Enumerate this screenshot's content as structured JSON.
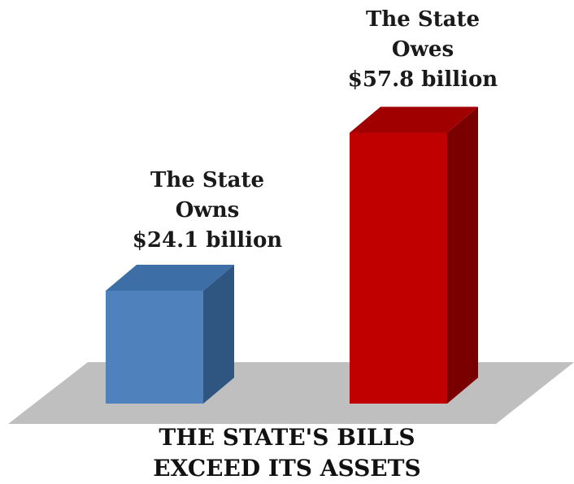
{
  "chart_data": {
    "type": "bar",
    "categories": [
      "The State Owns",
      "The State Owes"
    ],
    "values": [
      24.1,
      57.8
    ],
    "unit": "billion",
    "title_lines": [
      "THE STATE'S BILLS",
      "EXCEED ITS ASSETS"
    ],
    "labels": [
      {
        "lines": [
          "The State",
          "Owns",
          "$24.1 billion"
        ]
      },
      {
        "lines": [
          "The State",
          "Owes",
          "$57.8 billion"
        ]
      }
    ],
    "colors": {
      "owns_front": "#4f81bd",
      "owns_top": "#3d6fa6",
      "owns_side": "#2f5680",
      "owes_front": "#c00000",
      "owes_top": "#a00000",
      "owes_side": "#7a0000",
      "floor": "#bfbfbf"
    },
    "grid": false,
    "legend": "none"
  }
}
